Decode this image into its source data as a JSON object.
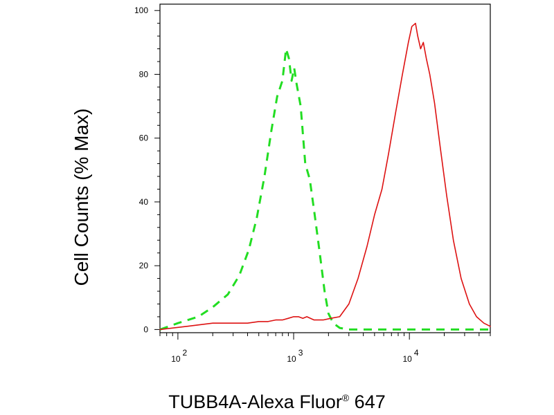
{
  "chart_data": {
    "type": "line",
    "xlabel": "TUBB4A-Alexa Fluor",
    "xlabel_mark": "®",
    "xlabel_suffix": " 647",
    "ylabel": "Cell Counts (% Max)",
    "x_scale": "log",
    "xlim": [
      70,
      50000
    ],
    "ylim": [
      -1,
      102
    ],
    "y_ticks": [
      0,
      20,
      40,
      60,
      80,
      100
    ],
    "y_tick_labels": [
      "0",
      "20",
      "40",
      "60",
      "80",
      "100"
    ],
    "x_ticks": [
      100,
      1000,
      10000
    ],
    "x_tick_labels": [
      {
        "base": "10",
        "exp": "2"
      },
      {
        "base": "10",
        "exp": "3"
      },
      {
        "base": "10",
        "exp": "4"
      }
    ],
    "grid": false,
    "legend": "none",
    "series": [
      {
        "color": "#22dd22",
        "style": "dashed",
        "x": [
          70,
          100,
          150,
          200,
          270,
          340,
          410,
          480,
          560,
          640,
          720,
          800,
          860,
          910,
          960,
          1010,
          1060,
          1150,
          1260,
          1380,
          1520,
          1680,
          1850,
          2000,
          2200,
          2500,
          3000,
          5000,
          10000,
          20000,
          50000
        ],
        "y": [
          0,
          2,
          4,
          7,
          11,
          17,
          25,
          35,
          48,
          62,
          73,
          78,
          88,
          85,
          78,
          82,
          77,
          70,
          52,
          47,
          36,
          24,
          12,
          5,
          2,
          0.5,
          0,
          0,
          0,
          0,
          0
        ]
      },
      {
        "color": "#dd1111",
        "style": "solid",
        "x": [
          70,
          120,
          200,
          300,
          400,
          500,
          600,
          700,
          800,
          900,
          1000,
          1100,
          1200,
          1300,
          1500,
          1800,
          2100,
          2500,
          3000,
          3600,
          4300,
          5000,
          5800,
          6600,
          7600,
          8700,
          9800,
          10500,
          11300,
          11800,
          12500,
          13200,
          14000,
          15000,
          16500,
          18500,
          21000,
          24000,
          28000,
          33000,
          38000,
          44000,
          50000
        ],
        "y": [
          0,
          1,
          2,
          2,
          2,
          2.5,
          2.5,
          3,
          3,
          3.5,
          4,
          4,
          3.5,
          4,
          3,
          3,
          3.5,
          4,
          8,
          16,
          26,
          36,
          44,
          55,
          68,
          80,
          90,
          95,
          96,
          92,
          88,
          90,
          85,
          80,
          71,
          57,
          42,
          28,
          16,
          8,
          4,
          2,
          1
        ]
      }
    ]
  }
}
